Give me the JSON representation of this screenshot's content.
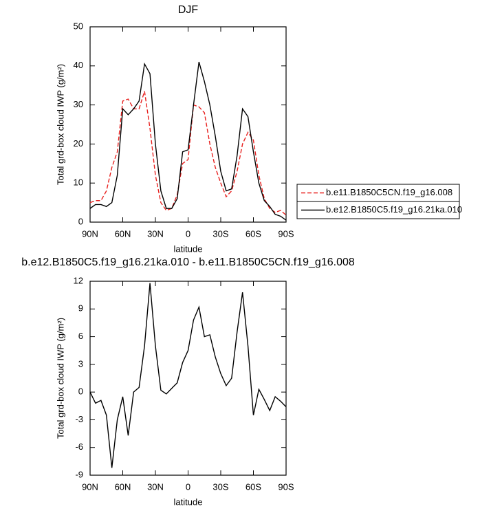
{
  "chart_data": [
    {
      "type": "line",
      "title": "DJF",
      "x_label": "latitude",
      "y_label": "Total grd-box cloud IWP (g/m²)",
      "x": [
        90,
        85,
        80,
        75,
        70,
        65,
        60,
        55,
        50,
        45,
        40,
        35,
        30,
        25,
        20,
        15,
        10,
        5,
        0,
        -5,
        -10,
        -15,
        -20,
        -25,
        -30,
        -35,
        -40,
        -45,
        -50,
        -55,
        -60,
        -65,
        -70,
        -75,
        -80,
        -85,
        -90
      ],
      "xlim": [
        90,
        -90
      ],
      "xticks": [
        {
          "value": 90,
          "label": "90N"
        },
        {
          "value": 60,
          "label": "60N"
        },
        {
          "value": 30,
          "label": "30N"
        },
        0,
        {
          "value": -30,
          "label": "30S"
        },
        {
          "value": -60,
          "label": "60S"
        },
        {
          "value": -90,
          "label": "90S"
        }
      ],
      "ylim": [
        0,
        50
      ],
      "yticks": [
        0,
        10,
        20,
        30,
        40,
        50
      ],
      "legend": "right",
      "series": [
        {
          "name": "b.e11.B1850C5CN.f19_g16.008",
          "color": "#e8201e",
          "line_style": "dashed",
          "values": [
            5,
            5.5,
            5.5,
            8,
            14,
            18,
            31,
            31.5,
            29,
            29,
            33.5,
            24,
            12,
            5,
            3,
            3.5,
            7,
            15,
            16,
            30,
            29.5,
            28,
            20,
            14,
            10,
            6.5,
            8,
            13,
            20,
            23,
            21,
            12,
            6,
            3.5,
            2.5,
            3,
            1.8
          ]
        },
        {
          "name": "b.e12.B1850C5.f19_g16.21ka.010",
          "color": "#000000",
          "line_style": "solid",
          "values": [
            3.5,
            4.5,
            4.5,
            4,
            5,
            12,
            29,
            27.5,
            29,
            31,
            40.5,
            38,
            20,
            8,
            3.5,
            3.5,
            6,
            18,
            18.5,
            30,
            41,
            36,
            30,
            22,
            13,
            8,
            8.5,
            17,
            29,
            27,
            18,
            10,
            5.5,
            4,
            2,
            1.5,
            0.5
          ]
        }
      ]
    },
    {
      "type": "line",
      "title": "b.e12.B1850C5.f19_g16.21ka.010 - b.e11.B1850C5CN.f19_g16.008",
      "x_label": "latitude",
      "y_label": "Total grd-box cloud IWP (g/m²)",
      "x": [
        90,
        85,
        80,
        75,
        70,
        65,
        60,
        55,
        50,
        45,
        40,
        35,
        30,
        25,
        20,
        15,
        10,
        5,
        0,
        -5,
        -10,
        -15,
        -20,
        -25,
        -30,
        -35,
        -40,
        -45,
        -50,
        -55,
        -60,
        -65,
        -70,
        -75,
        -80,
        -85,
        -90
      ],
      "xlim": [
        90,
        -90
      ],
      "xticks": [
        {
          "value": 90,
          "label": "90N"
        },
        {
          "value": 60,
          "label": "60N"
        },
        {
          "value": 30,
          "label": "30N"
        },
        0,
        {
          "value": -30,
          "label": "30S"
        },
        {
          "value": -60,
          "label": "60S"
        },
        {
          "value": -90,
          "label": "90S"
        }
      ],
      "ylim": [
        -9,
        12
      ],
      "yticks": [
        -9,
        -6,
        -3,
        0,
        3,
        6,
        9,
        12
      ],
      "color": "#000000",
      "line_style": "solid",
      "values": [
        0,
        -1.2,
        -0.9,
        -2.5,
        -8.2,
        -3,
        -0.5,
        -4.7,
        0,
        0.5,
        5,
        11.8,
        5,
        0.2,
        -0.2,
        0.4,
        1,
        3.2,
        4.5,
        7.8,
        9.2,
        6,
        6.2,
        3.8,
        2,
        0.7,
        1.5,
        6.5,
        10.8,
        5,
        -2.5,
        0.3,
        -0.8,
        -2,
        -0.5,
        -1,
        -1.6
      ]
    }
  ]
}
